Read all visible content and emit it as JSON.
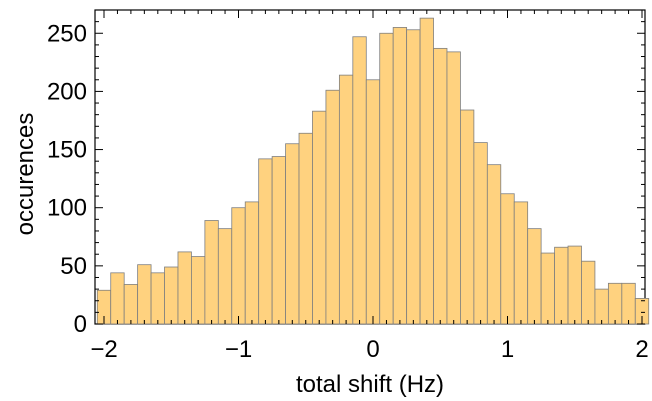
{
  "chart_data": {
    "type": "bar",
    "title": "",
    "xlabel": "total shift (Hz)",
    "ylabel": "occurences",
    "xlim": [
      -2,
      2
    ],
    "ylim": [
      0,
      270
    ],
    "bin_width": 0.1,
    "bin_start": -2.0,
    "x_ticks": [
      -2,
      -1,
      0,
      1,
      2
    ],
    "x_tick_labels": [
      "−2",
      "−1",
      "0",
      "1",
      "2"
    ],
    "y_ticks": [
      0,
      50,
      100,
      150,
      200,
      250
    ],
    "y_tick_labels": [
      "0",
      "50",
      "100",
      "150",
      "200",
      "250"
    ],
    "bar_color": "#FFD27F",
    "edge_color": "#7f7f7f",
    "grid": false,
    "values": [
      29,
      44,
      34,
      51,
      44,
      49,
      62,
      58,
      89,
      82,
      100,
      105,
      142,
      144,
      155,
      164,
      183,
      201,
      214,
      247,
      210,
      250,
      255,
      253,
      263,
      237,
      234,
      184,
      156,
      137,
      112,
      105,
      82,
      61,
      66,
      67,
      54,
      30,
      35,
      35,
      22
    ]
  }
}
